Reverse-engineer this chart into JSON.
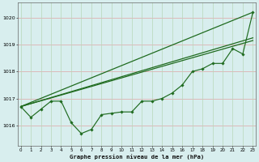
{
  "title": "Graphe pression niveau de la mer (hPa)",
  "xlabel_hours": [
    0,
    1,
    2,
    3,
    4,
    5,
    6,
    7,
    8,
    9,
    10,
    11,
    12,
    13,
    14,
    15,
    16,
    17,
    18,
    19,
    20,
    21,
    22,
    23
  ],
  "series1": [
    1016.7,
    1016.3,
    1016.6,
    1016.9,
    1016.9,
    1016.1,
    1015.7,
    1015.85,
    1016.4,
    1016.45,
    1016.5,
    1016.5,
    1016.9,
    1016.9,
    1017.0,
    1017.2,
    1017.5,
    1018.0,
    1018.1,
    1018.3,
    1018.3,
    1018.85,
    1018.65,
    1020.2
  ],
  "trend1_x": [
    0,
    23
  ],
  "trend1_y": [
    1016.7,
    1020.2
  ],
  "trend2_x": [
    0,
    23
  ],
  "trend2_y": [
    1016.7,
    1019.25
  ],
  "trend3_x": [
    0,
    23
  ],
  "trend3_y": [
    1016.7,
    1019.15
  ],
  "line_color": "#1f6b1f",
  "bg_color": "#d8eeee",
  "grid_color_h": "#ddb0b0",
  "grid_color_v": "#b8d8b8",
  "ylim": [
    1015.25,
    1020.55
  ],
  "yticks": [
    1016,
    1017,
    1018,
    1019,
    1020
  ],
  "xlim": [
    -0.3,
    23.3
  ]
}
